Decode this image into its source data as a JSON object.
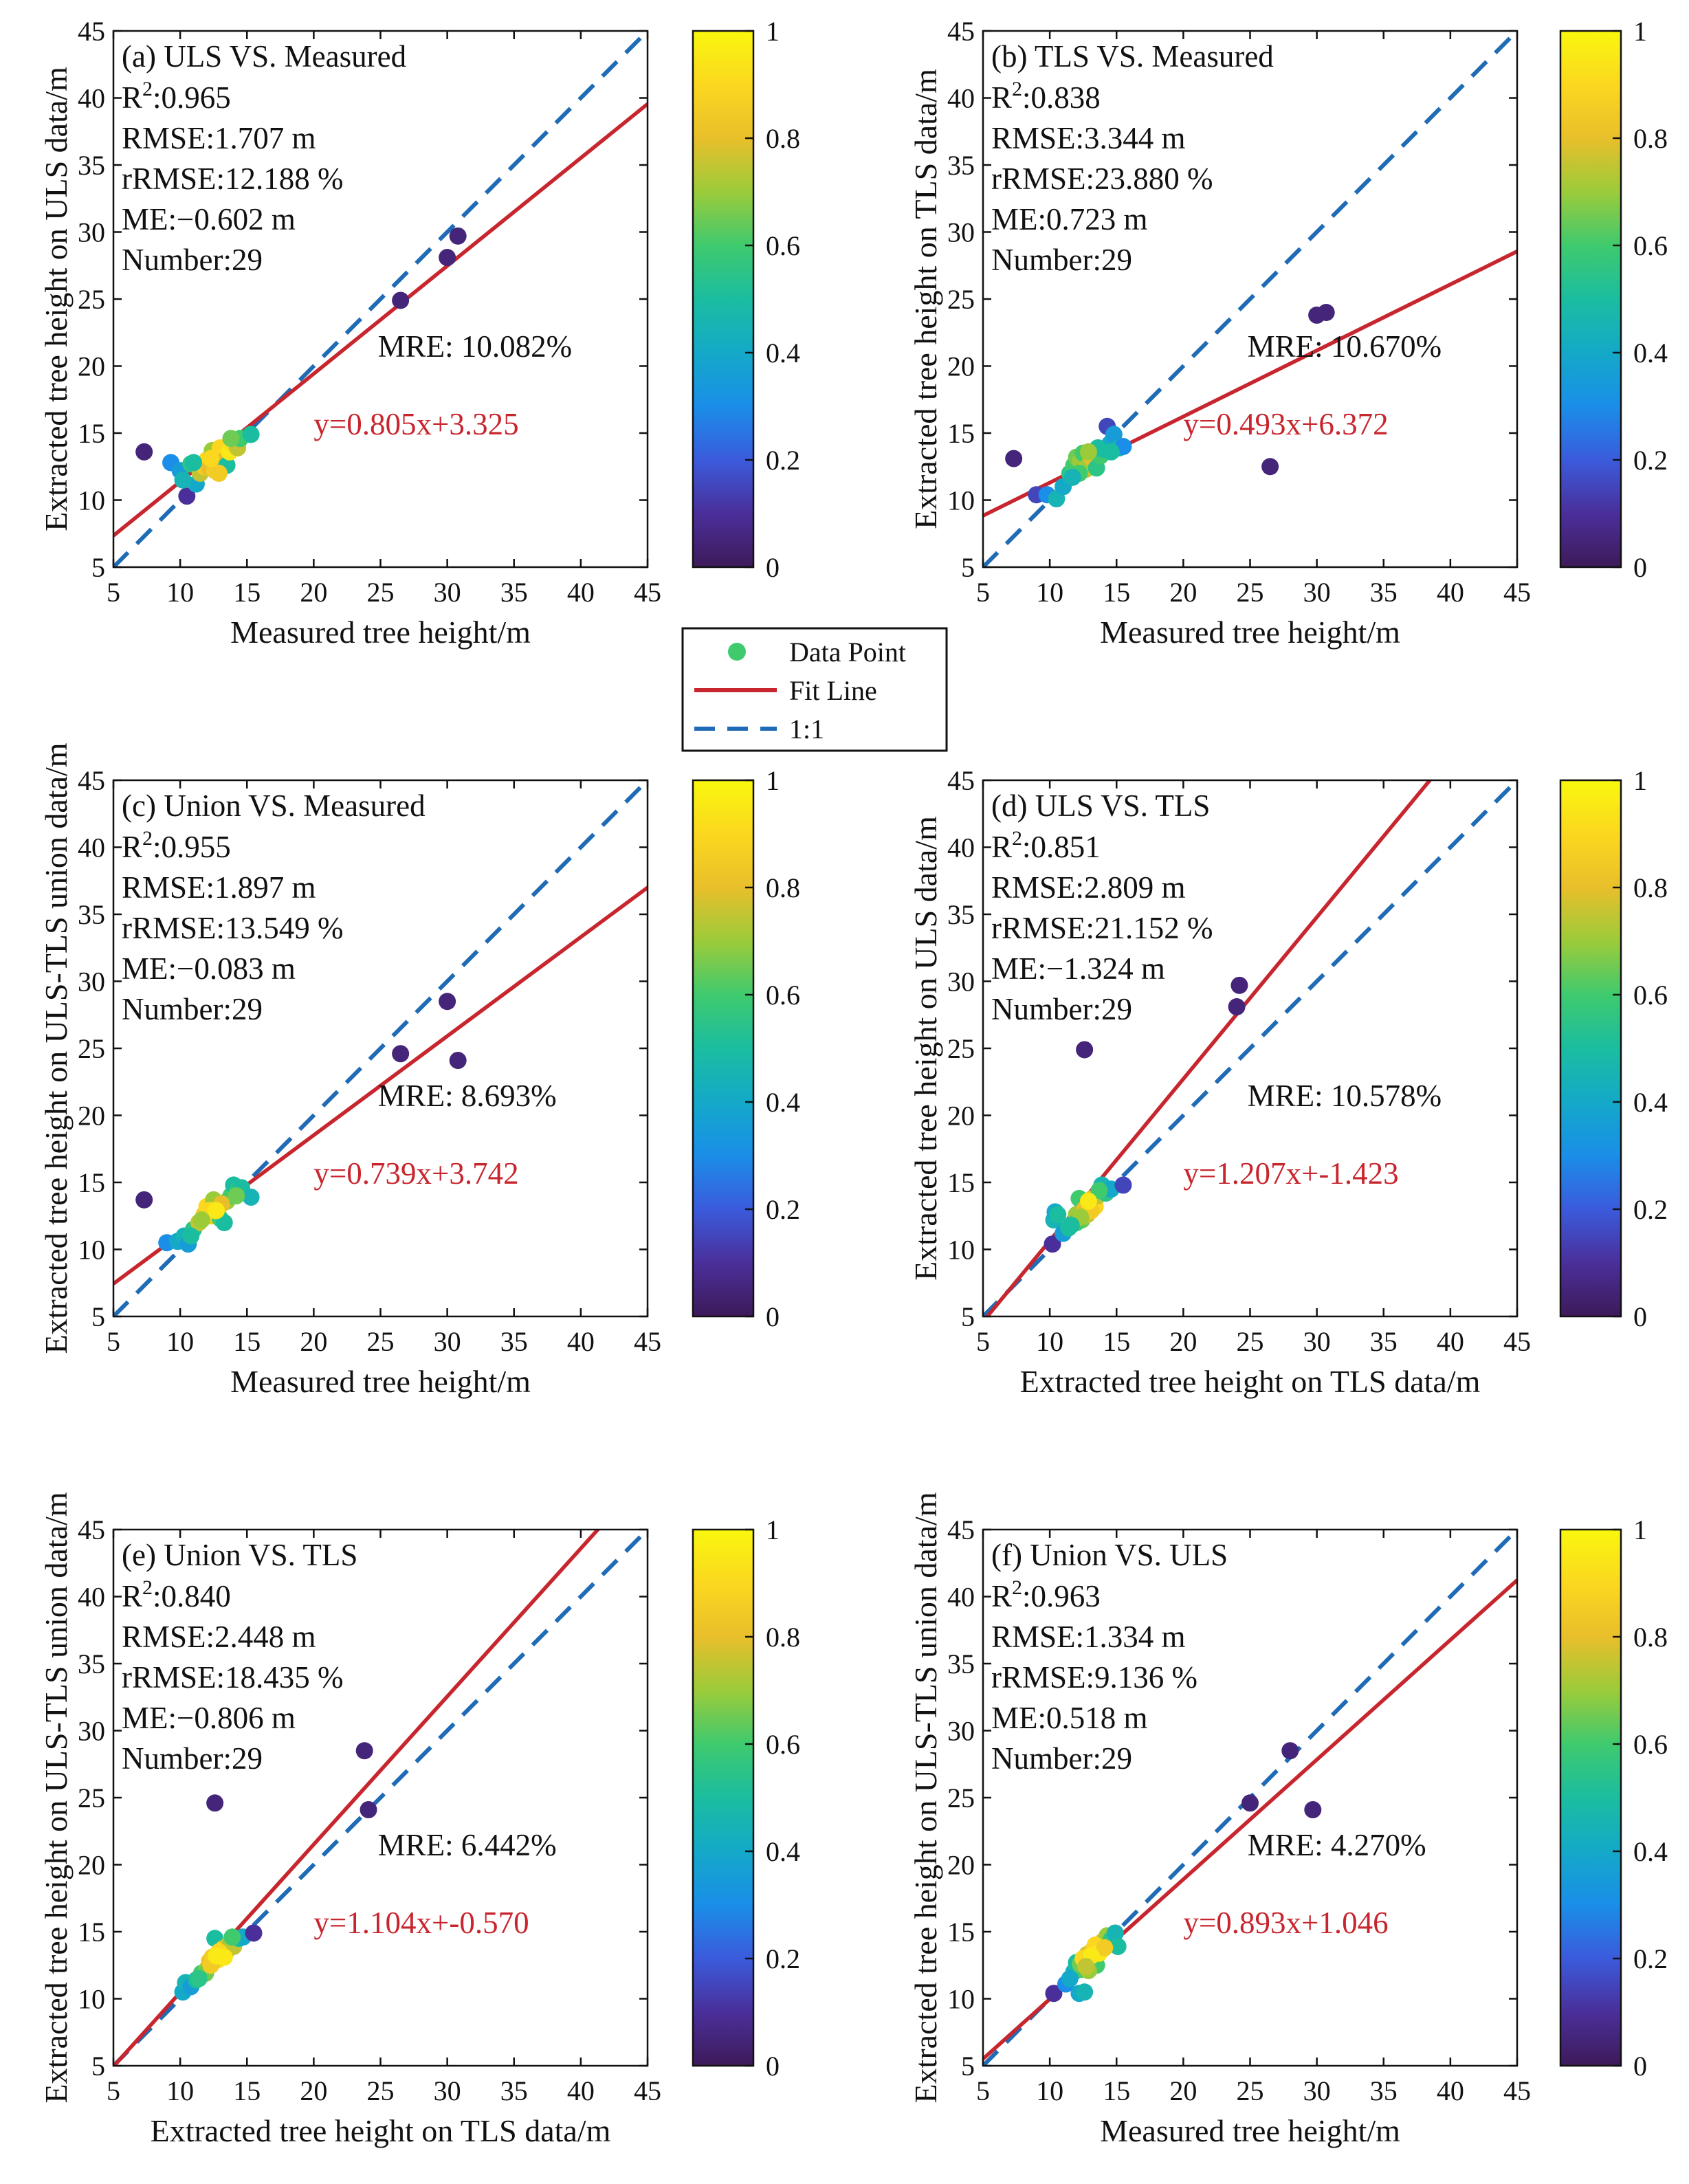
{
  "colors": {
    "fit_line": "#c8262e",
    "one_to_one": "#1f6bb5",
    "colormap": [
      "#3e1a5a",
      "#4a2f9a",
      "#3b5bdc",
      "#1a8ee8",
      "#14a9c8",
      "#1bbda0",
      "#3fca6e",
      "#9ccb3a",
      "#e8bf2b",
      "#fbd81f",
      "#f9f70e"
    ]
  },
  "legend": {
    "items": [
      {
        "label": "Data Point",
        "icon": "dot-icon"
      },
      {
        "label": "Fit Line",
        "icon": "solid-line-icon"
      },
      {
        "label": "1:1",
        "icon": "dashed-line-icon"
      }
    ]
  },
  "colorbar_ticks": [
    "0",
    "0.2",
    "0.4",
    "0.6",
    "0.8",
    "1"
  ],
  "chart_data": [
    {
      "type": "scatter",
      "title": "(a) ULS VS. Measured",
      "stats": [
        "R2:0.965",
        "RMSE:1.707 m",
        "rRMSE:12.188 %",
        "ME:−0.602 m",
        "Number:29"
      ],
      "mre": "MRE: 10.082%",
      "equation": "y=0.805x+3.325",
      "fit": {
        "slope": 0.805,
        "intercept": 3.325
      },
      "xlabel": "Measured tree height/m",
      "ylabel": "Extracted tree height on ULS data/m",
      "xlim": [
        5,
        45
      ],
      "ylim": [
        5,
        45
      ],
      "ticks": [
        5,
        10,
        15,
        20,
        25,
        30,
        35,
        40,
        45
      ],
      "points": [
        [
          7.3,
          13.6
        ],
        [
          9.3,
          12.8
        ],
        [
          10.0,
          12.2
        ],
        [
          10.5,
          10.3
        ],
        [
          10.8,
          12.7
        ],
        [
          11.2,
          11.2
        ],
        [
          11.5,
          12.0
        ],
        [
          11.8,
          12.5
        ],
        [
          12.0,
          13.0
        ],
        [
          12.2,
          12.4
        ],
        [
          12.4,
          13.7
        ],
        [
          12.6,
          12.2
        ],
        [
          12.8,
          13.3
        ],
        [
          13.0,
          13.9
        ],
        [
          13.2,
          12.9
        ],
        [
          13.5,
          12.6
        ],
        [
          13.7,
          13.6
        ],
        [
          14.0,
          14.2
        ],
        [
          14.3,
          13.9
        ],
        [
          14.5,
          14.6
        ],
        [
          15.3,
          14.9
        ],
        [
          26.5,
          24.9
        ],
        [
          30.0,
          28.1
        ],
        [
          30.8,
          29.7
        ],
        [
          10.2,
          11.5
        ],
        [
          12.9,
          12.0
        ],
        [
          11.0,
          12.8
        ],
        [
          13.8,
          14.6
        ],
        [
          12.3,
          13.1
        ]
      ],
      "density": [
        0.05,
        0.3,
        0.35,
        0.1,
        0.55,
        0.4,
        0.75,
        0.85,
        0.9,
        0.8,
        0.7,
        0.85,
        0.95,
        0.9,
        0.8,
        0.5,
        0.95,
        0.9,
        0.75,
        0.6,
        0.5,
        0.05,
        0.05,
        0.05,
        0.45,
        0.85,
        0.5,
        0.65,
        0.9
      ]
    },
    {
      "type": "scatter",
      "title": "(b) TLS VS. Measured",
      "stats": [
        "R2:0.838",
        "RMSE:3.344 m",
        "rRMSE:23.880 %",
        "ME:0.723 m",
        "Number:29"
      ],
      "mre": "MRE: 10.670%",
      "equation": "y=0.493x+6.372",
      "fit": {
        "slope": 0.493,
        "intercept": 6.372
      },
      "xlabel": "Measured tree height/m",
      "ylabel": "Extracted tree height on TLS data/m",
      "xlim": [
        5,
        45
      ],
      "ylim": [
        5,
        45
      ],
      "ticks": [
        5,
        10,
        15,
        20,
        25,
        30,
        35,
        40,
        45
      ],
      "points": [
        [
          7.3,
          13.1
        ],
        [
          9.0,
          10.4
        ],
        [
          9.8,
          10.4
        ],
        [
          10.5,
          10.1
        ],
        [
          11.0,
          11.0
        ],
        [
          11.5,
          12.0
        ],
        [
          11.8,
          12.6
        ],
        [
          12.0,
          13.2
        ],
        [
          12.3,
          12.9
        ],
        [
          12.5,
          13.5
        ],
        [
          12.7,
          12.3
        ],
        [
          13.0,
          12.8
        ],
        [
          13.2,
          13.1
        ],
        [
          13.5,
          12.4
        ],
        [
          13.8,
          13.3
        ],
        [
          14.0,
          13.8
        ],
        [
          14.3,
          15.5
        ],
        [
          14.5,
          14.2
        ],
        [
          14.8,
          14.9
        ],
        [
          15.2,
          13.9
        ],
        [
          15.5,
          14.0
        ],
        [
          26.5,
          12.5
        ],
        [
          30.0,
          23.8
        ],
        [
          30.7,
          24.0
        ],
        [
          12.2,
          12.0
        ],
        [
          13.6,
          13.9
        ],
        [
          11.7,
          11.7
        ],
        [
          14.6,
          13.6
        ],
        [
          12.9,
          13.6
        ]
      ],
      "density": [
        0.05,
        0.15,
        0.3,
        0.45,
        0.4,
        0.55,
        0.6,
        0.65,
        0.7,
        0.6,
        0.75,
        0.7,
        0.8,
        0.55,
        0.6,
        0.5,
        0.15,
        0.4,
        0.35,
        0.45,
        0.3,
        0.05,
        0.05,
        0.05,
        0.6,
        0.5,
        0.45,
        0.5,
        0.7
      ]
    },
    {
      "type": "scatter",
      "title": "(c) Union VS. Measured",
      "stats": [
        "R2:0.955",
        "RMSE:1.897 m",
        "rRMSE:13.549 %",
        "ME:−0.083 m",
        "Number:29"
      ],
      "mre": "MRE: 8.693%",
      "equation": "y=0.739x+3.742",
      "fit": {
        "slope": 0.739,
        "intercept": 3.742
      },
      "xlabel": "Measured tree height/m",
      "ylabel": "Extracted tree height on ULS-TLS union data/m",
      "xlim": [
        5,
        45
      ],
      "ylim": [
        5,
        45
      ],
      "ticks": [
        5,
        10,
        15,
        20,
        25,
        30,
        35,
        40,
        45
      ],
      "points": [
        [
          7.3,
          13.7
        ],
        [
          9.0,
          10.5
        ],
        [
          9.8,
          10.6
        ],
        [
          10.3,
          11.0
        ],
        [
          10.6,
          10.4
        ],
        [
          11.0,
          11.5
        ],
        [
          11.4,
          12.0
        ],
        [
          11.8,
          12.6
        ],
        [
          12.0,
          13.2
        ],
        [
          12.3,
          12.5
        ],
        [
          12.5,
          13.7
        ],
        [
          12.8,
          13.0
        ],
        [
          13.0,
          12.3
        ],
        [
          13.3,
          12.0
        ],
        [
          13.5,
          13.6
        ],
        [
          13.8,
          14.0
        ],
        [
          14.0,
          14.8
        ],
        [
          14.3,
          14.4
        ],
        [
          14.6,
          14.6
        ],
        [
          15.3,
          13.9
        ],
        [
          26.5,
          24.6
        ],
        [
          30.0,
          28.5
        ],
        [
          30.8,
          24.1
        ],
        [
          12.2,
          12.9
        ],
        [
          13.1,
          13.4
        ],
        [
          11.6,
          12.2
        ],
        [
          10.8,
          11.0
        ],
        [
          14.2,
          14.0
        ],
        [
          12.7,
          12.9
        ]
      ],
      "density": [
        0.05,
        0.3,
        0.4,
        0.45,
        0.35,
        0.55,
        0.75,
        0.85,
        0.9,
        0.85,
        0.7,
        0.8,
        0.6,
        0.5,
        0.7,
        0.6,
        0.5,
        0.55,
        0.5,
        0.45,
        0.05,
        0.05,
        0.05,
        0.9,
        0.8,
        0.7,
        0.5,
        0.65,
        0.95
      ]
    },
    {
      "type": "scatter",
      "title": "(d) ULS VS. TLS",
      "stats": [
        "R2:0.851",
        "RMSE:2.809 m",
        "rRMSE:21.152 %",
        "ME:−1.324 m",
        "Number:29"
      ],
      "mre": "MRE: 10.578%",
      "equation": "y=1.207x+-1.423",
      "fit": {
        "slope": 1.207,
        "intercept": -1.423
      },
      "xlabel": "Extracted tree height on TLS data/m",
      "ylabel": "Extracted tree height on ULS data/m",
      "xlim": [
        5,
        45
      ],
      "ylim": [
        5,
        45
      ],
      "ticks": [
        5,
        10,
        15,
        20,
        25,
        30,
        35,
        40,
        45
      ],
      "points": [
        [
          10.2,
          10.4
        ],
        [
          10.3,
          12.2
        ],
        [
          10.4,
          12.8
        ],
        [
          10.6,
          12.6
        ],
        [
          11.0,
          11.2
        ],
        [
          11.4,
          11.6
        ],
        [
          11.8,
          12.0
        ],
        [
          12.0,
          12.6
        ],
        [
          12.2,
          13.8
        ],
        [
          12.4,
          12.2
        ],
        [
          12.6,
          13.0
        ],
        [
          12.8,
          12.6
        ],
        [
          13.0,
          13.4
        ],
        [
          13.2,
          13.8
        ],
        [
          13.4,
          13.2
        ],
        [
          13.6,
          14.0
        ],
        [
          13.9,
          14.8
        ],
        [
          14.2,
          14.2
        ],
        [
          14.6,
          14.5
        ],
        [
          15.5,
          14.8
        ],
        [
          12.6,
          24.9
        ],
        [
          24.0,
          28.1
        ],
        [
          24.2,
          29.7
        ],
        [
          12.0,
          12.0
        ],
        [
          13.1,
          12.9
        ],
        [
          12.3,
          12.4
        ],
        [
          11.6,
          11.8
        ],
        [
          13.7,
          14.4
        ],
        [
          12.9,
          13.6
        ]
      ],
      "density": [
        0.1,
        0.45,
        0.4,
        0.5,
        0.35,
        0.5,
        0.55,
        0.7,
        0.6,
        0.65,
        0.8,
        0.75,
        0.85,
        0.8,
        0.9,
        0.75,
        0.45,
        0.55,
        0.4,
        0.15,
        0.05,
        0.05,
        0.05,
        0.6,
        0.85,
        0.7,
        0.5,
        0.6,
        0.95
      ]
    },
    {
      "type": "scatter",
      "title": "(e) Union VS. TLS",
      "stats": [
        "R2:0.840",
        "RMSE:2.448 m",
        "rRMSE:18.435 %",
        "ME:−0.806 m",
        "Number:29"
      ],
      "mre": "MRE: 6.442%",
      "equation": "y=1.104x+-0.570",
      "fit": {
        "slope": 1.104,
        "intercept": -0.57
      },
      "xlabel": "Extracted tree height on TLS data/m",
      "ylabel": "Extracted tree height on ULS-TLS union data/m",
      "xlim": [
        5,
        45
      ],
      "ylim": [
        5,
        45
      ],
      "ticks": [
        5,
        10,
        15,
        20,
        25,
        30,
        35,
        40,
        45
      ],
      "points": [
        [
          10.2,
          10.5
        ],
        [
          10.4,
          11.2
        ],
        [
          10.8,
          10.9
        ],
        [
          11.2,
          11.4
        ],
        [
          11.6,
          11.9
        ],
        [
          12.0,
          12.2
        ],
        [
          12.2,
          12.8
        ],
        [
          12.4,
          13.1
        ],
        [
          12.6,
          14.5
        ],
        [
          12.8,
          12.9
        ],
        [
          13.0,
          13.3
        ],
        [
          13.2,
          13.7
        ],
        [
          13.4,
          13.4
        ],
        [
          13.6,
          14.0
        ],
        [
          13.8,
          14.2
        ],
        [
          14.0,
          13.9
        ],
        [
          14.4,
          14.5
        ],
        [
          14.7,
          14.6
        ],
        [
          15.5,
          14.9
        ],
        [
          12.6,
          24.6
        ],
        [
          23.8,
          28.5
        ],
        [
          24.1,
          24.1
        ],
        [
          11.9,
          11.9
        ],
        [
          12.9,
          13.5
        ],
        [
          12.3,
          12.5
        ],
        [
          13.3,
          13.1
        ],
        [
          11.4,
          11.5
        ],
        [
          13.9,
          14.6
        ],
        [
          12.7,
          13.2
        ]
      ],
      "density": [
        0.4,
        0.45,
        0.35,
        0.5,
        0.6,
        0.7,
        0.8,
        0.85,
        0.5,
        0.9,
        0.95,
        0.9,
        0.85,
        0.8,
        0.7,
        0.75,
        0.5,
        0.4,
        0.1,
        0.05,
        0.05,
        0.05,
        0.65,
        0.9,
        0.85,
        0.95,
        0.55,
        0.6,
        0.95
      ]
    },
    {
      "type": "scatter",
      "title": "(f) Union VS. ULS",
      "stats": [
        "R2:0.963",
        "RMSE:1.334 m",
        "rRMSE:9.136 %",
        "ME:0.518 m",
        "Number:29"
      ],
      "mre": "MRE: 4.270%",
      "equation": "y=0.893x+1.046",
      "fit": {
        "slope": 0.893,
        "intercept": 1.046
      },
      "xlabel": "Measured tree height/m",
      "ylabel": "Extracted tree height on ULS-TLS union data/m",
      "xlim": [
        5,
        45
      ],
      "ylim": [
        5,
        45
      ],
      "ticks": [
        5,
        10,
        15,
        20,
        25,
        30,
        35,
        40,
        45
      ],
      "points": [
        [
          10.3,
          10.4
        ],
        [
          11.2,
          11.1
        ],
        [
          11.8,
          12.0
        ],
        [
          12.0,
          12.7
        ],
        [
          12.2,
          10.4
        ],
        [
          12.4,
          12.2
        ],
        [
          12.6,
          10.5
        ],
        [
          12.8,
          13.3
        ],
        [
          13.0,
          12.8
        ],
        [
          13.2,
          13.6
        ],
        [
          13.5,
          12.5
        ],
        [
          13.8,
          13.9
        ],
        [
          14.0,
          14.3
        ],
        [
          14.3,
          14.7
        ],
        [
          14.6,
          14.4
        ],
        [
          14.9,
          14.9
        ],
        [
          15.1,
          13.9
        ],
        [
          12.3,
          12.6
        ],
        [
          13.4,
          14.0
        ],
        [
          12.9,
          12.1
        ],
        [
          13.7,
          13.4
        ],
        [
          11.5,
          11.5
        ],
        [
          14.1,
          13.8
        ],
        [
          12.5,
          13.0
        ],
        [
          25.0,
          24.6
        ],
        [
          28.0,
          28.5
        ],
        [
          29.7,
          24.1
        ],
        [
          13.1,
          13.2
        ],
        [
          12.7,
          12.4
        ]
      ],
      "density": [
        0.1,
        0.3,
        0.45,
        0.5,
        0.4,
        0.6,
        0.45,
        0.75,
        0.8,
        0.85,
        0.6,
        0.9,
        0.8,
        0.7,
        0.55,
        0.45,
        0.5,
        0.65,
        0.9,
        0.7,
        0.95,
        0.4,
        0.85,
        0.9,
        0.05,
        0.05,
        0.05,
        0.95,
        0.75
      ]
    }
  ]
}
